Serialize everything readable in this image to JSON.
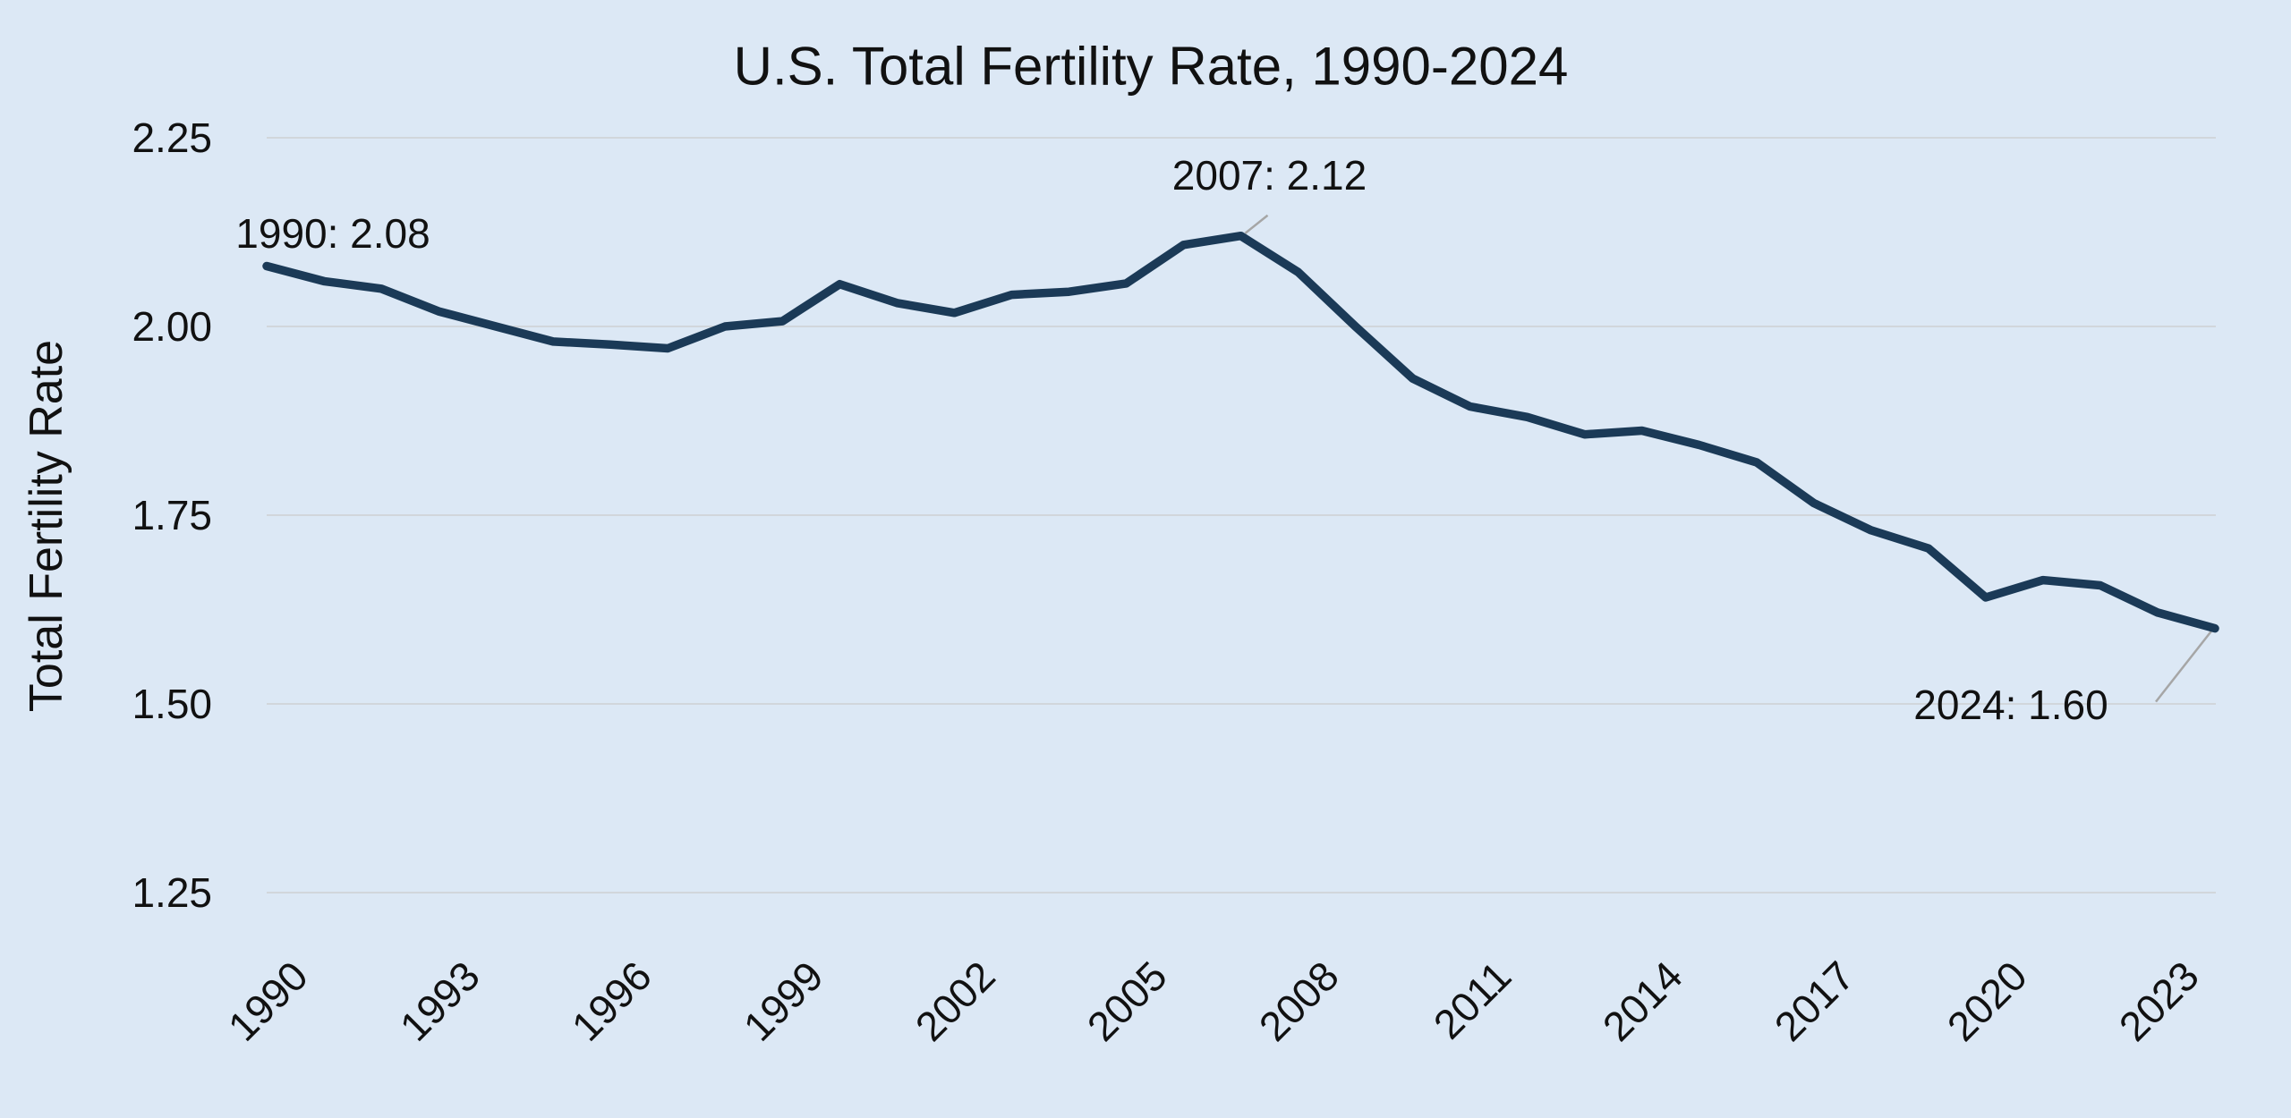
{
  "chart_data": {
    "type": "line",
    "title": "U.S. Total Fertility Rate, 1990-2024",
    "xlabel": "",
    "ylabel": "Total Fertility Rate",
    "x": [
      1990,
      1991,
      1992,
      1993,
      1994,
      1995,
      1996,
      1997,
      1998,
      1999,
      2000,
      2001,
      2002,
      2003,
      2004,
      2005,
      2006,
      2007,
      2008,
      2009,
      2010,
      2011,
      2012,
      2013,
      2014,
      2015,
      2016,
      2017,
      2018,
      2019,
      2020,
      2021,
      2022,
      2023,
      2024
    ],
    "series": [
      {
        "name": "Total Fertility Rate",
        "values": [
          2.08,
          2.06,
          2.05,
          2.02,
          2.0,
          1.98,
          1.976,
          1.971,
          2.0,
          2.007,
          2.056,
          2.031,
          2.018,
          2.042,
          2.046,
          2.057,
          2.108,
          2.12,
          2.072,
          2.0,
          1.931,
          1.894,
          1.88,
          1.857,
          1.862,
          1.843,
          1.82,
          1.766,
          1.73,
          1.706,
          1.641,
          1.664,
          1.657,
          1.621,
          1.6
        ]
      }
    ],
    "xlim": [
      1990,
      2024
    ],
    "ylim": [
      1.15,
      2.3
    ],
    "xticks": [
      "1990",
      "1993",
      "1996",
      "1999",
      "2002",
      "2005",
      "2008",
      "2011",
      "2014",
      "2017",
      "2020",
      "2023"
    ],
    "yticks": [
      {
        "value": 2.25,
        "label": "2.25"
      },
      {
        "value": 2.0,
        "label": "2.00"
      },
      {
        "value": 1.75,
        "label": "1.75"
      },
      {
        "value": 1.5,
        "label": "1.50"
      },
      {
        "value": 1.25,
        "label": "1.25"
      }
    ],
    "grid": "horizontal-only",
    "legend": "none",
    "annotations": [
      {
        "text": "1990: 2.08",
        "year": 1990,
        "value": 2.08,
        "leader": false
      },
      {
        "text": "2007: 2.12",
        "year": 2007,
        "value": 2.12,
        "leader": true
      },
      {
        "text": "2024: 1.60",
        "year": 2024,
        "value": 1.6,
        "leader": true
      }
    ],
    "colors": {
      "background": "#dce8f5",
      "line": "#1b3a57",
      "grid": "#d1d6db",
      "text": "#111111",
      "leader": "#a6a6a6"
    }
  }
}
